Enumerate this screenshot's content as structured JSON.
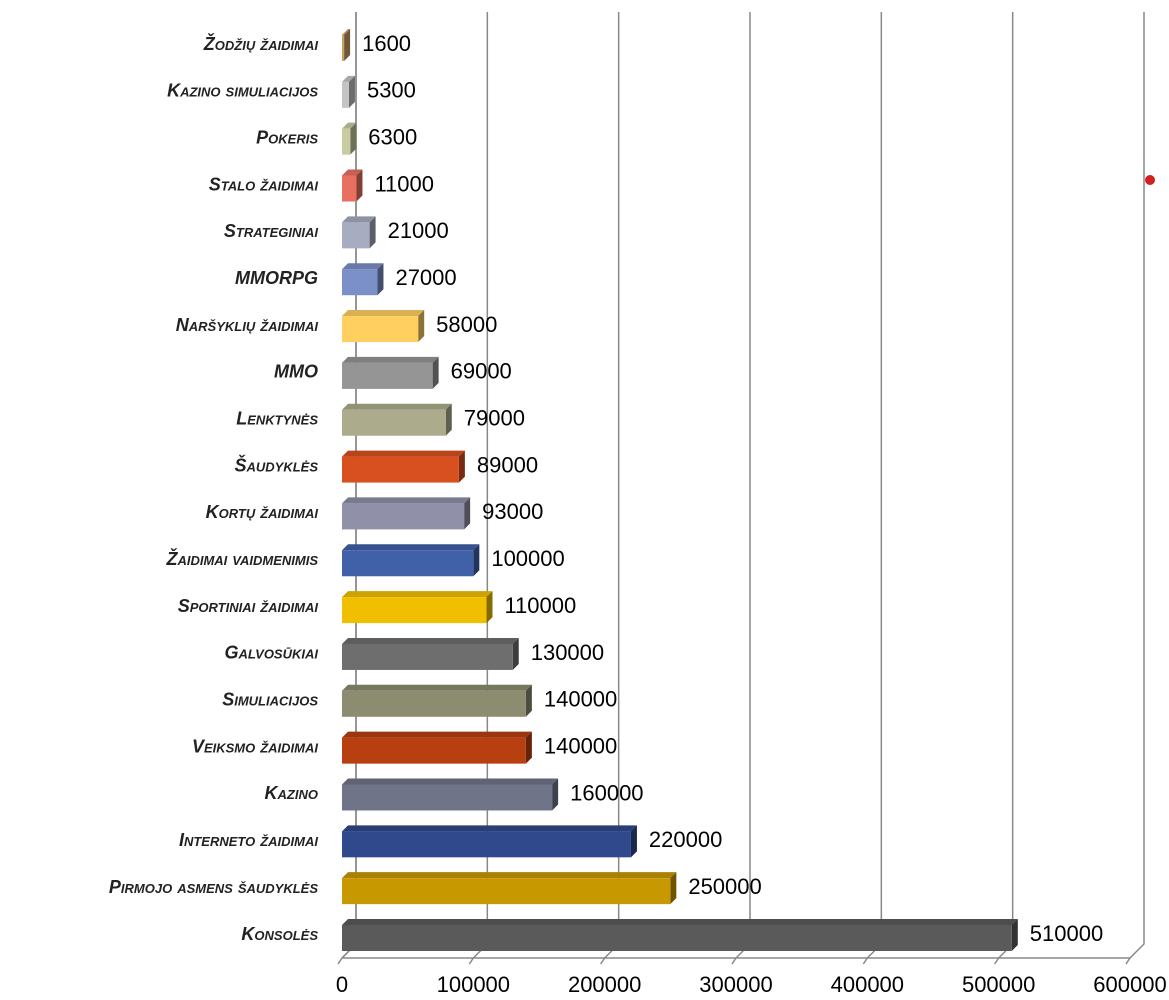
{
  "chart_data": {
    "type": "bar",
    "orientation": "horizontal",
    "categories": [
      "Žodžių žaidimai",
      "Kazino simuliacijos",
      "Pokeris",
      "Stalo žaidimai",
      "Strateginiai",
      "MMORPG",
      "Naršyklių žaidimai",
      "MMO",
      "Lenktynės",
      "Šaudyklės",
      "Kortų žaidimai",
      "Žaidimai vaidmenimis",
      "Sportiniai žaidimai",
      "Galvosūkiai",
      "Simuliacijos",
      "Veiksmo žaidimai",
      "Kazino",
      "Interneto žaidimai",
      "Pirmojo asmens šaudyklės",
      "Konsolės"
    ],
    "values": [
      1600,
      5300,
      6300,
      11000,
      21000,
      27000,
      58000,
      69000,
      79000,
      89000,
      93000,
      100000,
      110000,
      130000,
      140000,
      140000,
      160000,
      220000,
      250000,
      510000
    ],
    "colors": [
      "#c8a060",
      "#c4c4c4",
      "#c8cca0",
      "#e87060",
      "#a8acc0",
      "#7b8fc8",
      "#ffd060",
      "#959595",
      "#acac8c",
      "#d95020",
      "#9090a8",
      "#4060a8",
      "#f0c000",
      "#6e6e6e",
      "#8c8c70",
      "#b84010",
      "#707488",
      "#30488c",
      "#c89800",
      "#5a5a5a"
    ],
    "xlim": [
      0,
      600000
    ],
    "xticks": [
      0,
      100000,
      200000,
      300000,
      400000,
      500000,
      600000
    ],
    "grid": true
  }
}
